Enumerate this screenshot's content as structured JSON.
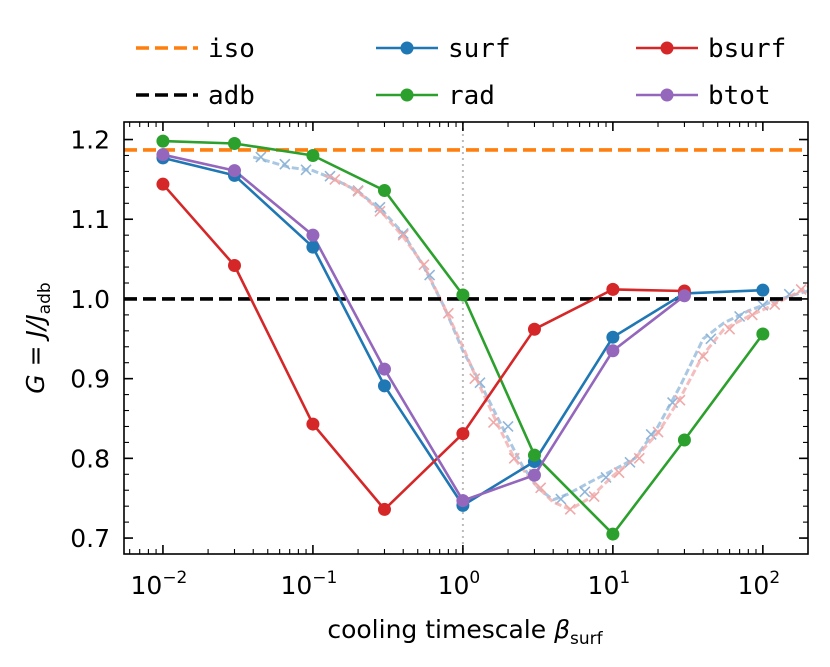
{
  "chart_data": {
    "type": "line",
    "xscale": "log",
    "xlim": [
      0.0055,
      200
    ],
    "ylim": [
      0.68,
      1.222
    ],
    "xlabel_main": "cooling timescale ",
    "xlabel_symbol": "β",
    "xlabel_sub": "surf",
    "ylabel_main": "G = J/J",
    "ylabel_sub": "adb",
    "x_ticks": [
      {
        "value": 0.01,
        "base": "10",
        "exp": "−2"
      },
      {
        "value": 0.1,
        "base": "10",
        "exp": "−1"
      },
      {
        "value": 1,
        "base": "10",
        "exp": "0"
      },
      {
        "value": 10,
        "base": "10",
        "exp": "1"
      },
      {
        "value": 100,
        "base": "10",
        "exp": "2"
      }
    ],
    "y_ticks": [
      {
        "value": 0.7,
        "label": "0.7"
      },
      {
        "value": 0.8,
        "label": "0.8"
      },
      {
        "value": 0.9,
        "label": "0.9"
      },
      {
        "value": 1.0,
        "label": "1.0"
      },
      {
        "value": 1.1,
        "label": "1.1"
      },
      {
        "value": 1.2,
        "label": "1.2"
      }
    ],
    "vline": {
      "x": 1,
      "color": "#bbbbbb"
    },
    "hlines": [
      {
        "name": "iso",
        "y": 1.187,
        "color": "#ff7f0e"
      },
      {
        "name": "adb",
        "y": 1.0,
        "color": "#000000"
      }
    ],
    "series": [
      {
        "name": "surf",
        "color": "#1f77b4",
        "x": [
          0.01,
          0.03,
          0.1,
          0.3,
          1,
          3,
          10,
          30,
          100
        ],
        "y": [
          1.177,
          1.155,
          1.065,
          0.891,
          0.741,
          0.796,
          0.952,
          1.007,
          1.011
        ]
      },
      {
        "name": "rad",
        "color": "#2ca02c",
        "x": [
          0.01,
          0.03,
          0.1,
          0.3,
          1,
          3,
          10,
          30,
          100
        ],
        "y": [
          1.198,
          1.195,
          1.18,
          1.136,
          1.005,
          0.804,
          0.705,
          0.823,
          0.956
        ]
      },
      {
        "name": "bsurf",
        "color": "#d62728",
        "x": [
          0.01,
          0.03,
          0.1,
          0.3,
          1,
          3,
          10,
          30
        ],
        "y": [
          1.144,
          1.042,
          0.843,
          0.736,
          0.831,
          0.962,
          1.012,
          1.01
        ]
      },
      {
        "name": "btot",
        "color": "#9467bd",
        "x": [
          0.01,
          0.03,
          0.1,
          0.3,
          1,
          3,
          10,
          30
        ],
        "y": [
          1.181,
          1.161,
          1.08,
          0.912,
          0.747,
          0.779,
          0.935,
          1.004
        ]
      }
    ],
    "faint_series": [
      {
        "name": "surf-continuous",
        "color": "#8fb6d9",
        "x": [
          0.04,
          0.05,
          0.07,
          0.1,
          0.14,
          0.2,
          0.3,
          0.4,
          0.55,
          0.75,
          1,
          1.3,
          1.8,
          2.5,
          3.2,
          4,
          5,
          7,
          10,
          14,
          20,
          28,
          40,
          55,
          80,
          110,
          160,
          200
        ],
        "y": [
          1.178,
          1.173,
          1.165,
          1.161,
          1.15,
          1.135,
          1.108,
          1.082,
          1.04,
          0.99,
          0.935,
          0.895,
          0.842,
          0.79,
          0.762,
          0.748,
          0.755,
          0.77,
          0.785,
          0.8,
          0.84,
          0.89,
          0.95,
          0.97,
          0.985,
          0.995,
          1.005,
          1.01
        ],
        "markers_x": [
          0.045,
          0.065,
          0.09,
          0.13,
          0.2,
          0.28,
          0.4,
          0.6,
          1.3,
          2.0,
          3.0,
          4.5,
          6.5,
          9,
          13,
          18,
          25,
          45,
          70,
          100,
          150
        ],
        "markers_y": [
          1.178,
          1.169,
          1.162,
          1.154,
          1.136,
          1.115,
          1.082,
          1.03,
          0.895,
          0.84,
          0.78,
          0.749,
          0.758,
          0.776,
          0.795,
          0.83,
          0.87,
          0.95,
          0.978,
          0.992,
          1.006
        ]
      },
      {
        "name": "bsurf-continuous",
        "color": "#f0a8a8",
        "x": [
          0.12,
          0.16,
          0.22,
          0.3,
          0.4,
          0.55,
          0.75,
          1,
          1.3,
          1.7,
          2.2,
          3,
          4,
          5.2,
          7,
          10,
          14,
          20,
          28,
          40,
          55,
          80,
          110,
          150,
          200
        ],
        "y": [
          1.155,
          1.145,
          1.128,
          1.105,
          1.078,
          1.042,
          0.99,
          0.94,
          0.89,
          0.843,
          0.8,
          0.768,
          0.745,
          0.736,
          0.75,
          0.778,
          0.8,
          0.832,
          0.875,
          0.93,
          0.962,
          0.978,
          0.99,
          1.003,
          1.015
        ],
        "markers_x": [
          0.14,
          0.2,
          0.28,
          0.4,
          0.55,
          0.8,
          1.2,
          1.6,
          2.2,
          3.3,
          5.2,
          7.5,
          11,
          15,
          20,
          28,
          40,
          60,
          85,
          120,
          180
        ],
        "markers_y": [
          1.15,
          1.135,
          1.11,
          1.08,
          1.043,
          0.982,
          0.9,
          0.845,
          0.8,
          0.763,
          0.736,
          0.752,
          0.782,
          0.8,
          0.833,
          0.873,
          0.928,
          0.962,
          0.98,
          0.993,
          1.012
        ]
      }
    ]
  },
  "legend": {
    "items": [
      {
        "label": "iso",
        "color": "#ff7f0e",
        "style": "dashed",
        "marker": false
      },
      {
        "label": "surf",
        "color": "#1f77b4",
        "style": "solid",
        "marker": true
      },
      {
        "label": "bsurf",
        "color": "#d62728",
        "style": "solid",
        "marker": true
      },
      {
        "label": "adb",
        "color": "#000000",
        "style": "dashed",
        "marker": false
      },
      {
        "label": "rad",
        "color": "#2ca02c",
        "style": "solid",
        "marker": true
      },
      {
        "label": "btot",
        "color": "#9467bd",
        "style": "solid",
        "marker": true
      }
    ]
  }
}
